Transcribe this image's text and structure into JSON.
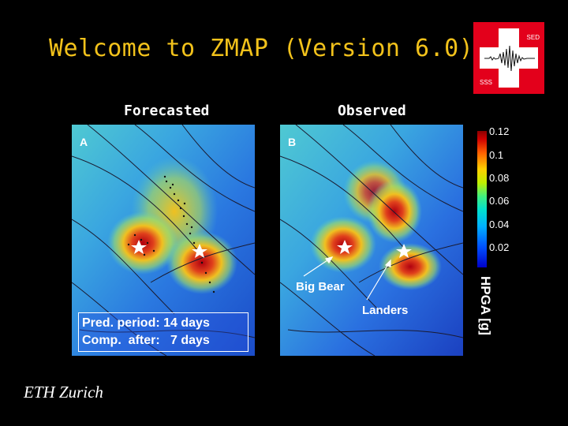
{
  "title": "Welcome to ZMAP (Version 6.0)",
  "logo": {
    "top_text": "SED",
    "bottom_text": "SSS",
    "colors": {
      "red": "#e3001b",
      "white": "#ffffff"
    }
  },
  "panels": [
    {
      "heading": "Forecasted",
      "letter": "A",
      "info_box": {
        "line1": "Pred. period: 14 days",
        "line2": "Comp.  after:   7 days"
      }
    },
    {
      "heading": "Observed",
      "letter": "B",
      "annotations": {
        "big_bear": "Big Bear",
        "landers": "Landers"
      }
    }
  ],
  "colorbar": {
    "ticks": [
      "0.12",
      "0.1",
      "0.08",
      "0.06",
      "0.04",
      "0.02"
    ],
    "label": "HPGA [g]"
  },
  "footer": "ETH Zurich",
  "theme": {
    "title_color": "#f2c21b",
    "background": "#000000"
  }
}
